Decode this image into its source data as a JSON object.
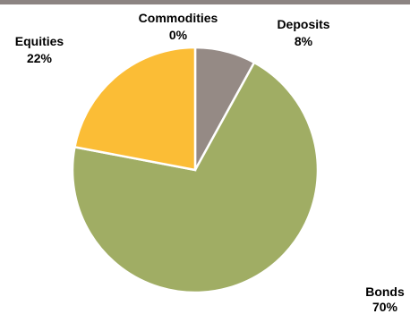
{
  "chart_data": {
    "type": "pie",
    "slices": [
      {
        "label": "Commodities",
        "value": 0,
        "percent_label": "0%",
        "color": "#8b8b8b"
      },
      {
        "label": "Deposits",
        "value": 8,
        "percent_label": "8%",
        "color": "#958a85"
      },
      {
        "label": "Bonds",
        "value": 70,
        "percent_label": "70%",
        "color": "#a0ad64"
      },
      {
        "label": "Equities",
        "value": 22,
        "percent_label": "22%",
        "color": "#fbbd36"
      }
    ]
  },
  "colors": {
    "top_bar": "#8c8482"
  }
}
